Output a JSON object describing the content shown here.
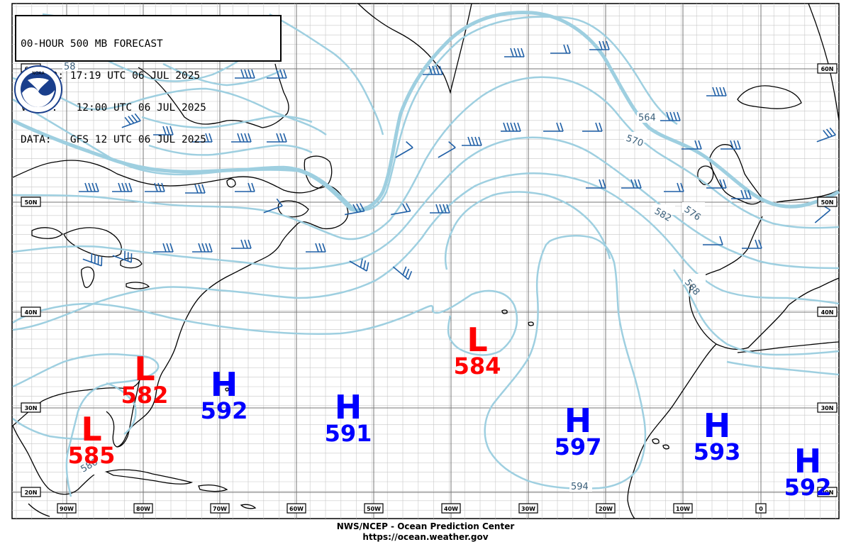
{
  "header": {
    "line1": "00-HOUR 500 MB FORECAST",
    "line2": "ISSUED: 17:19 UTC 06 JUL 2025",
    "line3": "VALID:   12:00 UTC 06 JUL 2025",
    "line4": "DATA:   GFS 12 UTC 06 JUL 2025"
  },
  "logo": {
    "text": "NOAA"
  },
  "footer": {
    "line1": "NWS/NCEP - Ocean Prediction Center",
    "line2": "https://ocean.weather.gov"
  },
  "lon_labels": [
    "90W",
    "80W",
    "70W",
    "60W",
    "50W",
    "40W",
    "30W",
    "20W",
    "10W",
    "0"
  ],
  "lat_labels_left": [
    "60N",
    "50N",
    "40N",
    "30N",
    "20N"
  ],
  "lat_labels_right": [
    "60N",
    "50N",
    "40N",
    "30N",
    "20N"
  ],
  "contour_labels": [
    "58",
    "564",
    "570",
    "576",
    "582",
    "588",
    "594",
    "586"
  ],
  "pressure_centers": [
    {
      "type": "L",
      "value": "582"
    },
    {
      "type": "L",
      "value": "585"
    },
    {
      "type": "H",
      "value": "592"
    },
    {
      "type": "H",
      "value": "591"
    },
    {
      "type": "L",
      "value": "584"
    },
    {
      "type": "H",
      "value": "597"
    },
    {
      "type": "H",
      "value": "593"
    },
    {
      "type": "H",
      "value": "592"
    }
  ],
  "colors": {
    "contour": "#9ecfe0",
    "barb": "#1f5fa6",
    "grid": "#999999",
    "low": "#ff0000",
    "high": "#0000ff"
  }
}
